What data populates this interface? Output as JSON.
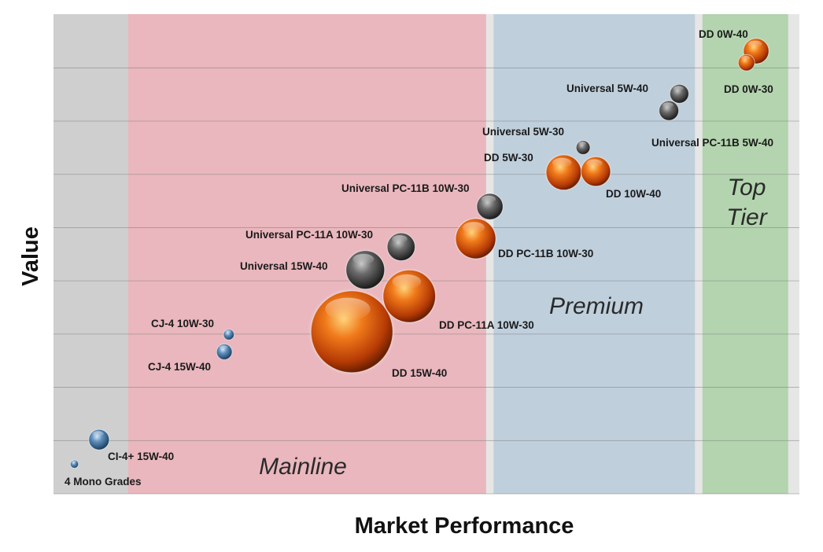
{
  "chart_data": {
    "type": "bubble",
    "xlabel": "Market Performance",
    "ylabel": "Value",
    "grid": true,
    "xlim": [
      0,
      100
    ],
    "ylim": [
      0,
      100
    ],
    "tiers": [
      {
        "name": "",
        "x0": 0,
        "x1": 10,
        "color": "#cfcfcf"
      },
      {
        "name": "Mainline",
        "x0": 10,
        "x1": 58,
        "color": "#e9b7bd"
      },
      {
        "name": "Premium",
        "x0": 59,
        "x1": 86,
        "color": "#bfcfdc"
      },
      {
        "name": "Top Tier",
        "x0": 87,
        "x1": 98.5,
        "color": "#b3d4ae"
      }
    ],
    "points": [
      {
        "label": "4 Mono Grades",
        "x": 2.8,
        "y": 6.2,
        "size": 1,
        "color": "blue"
      },
      {
        "label": "CI-4+ 15W-40",
        "x": 6.1,
        "y": 11.3,
        "size": 2.5,
        "color": "blue"
      },
      {
        "label": "CJ-4 10W-30",
        "x": 23.5,
        "y": 33.2,
        "size": 1.3,
        "color": "blue"
      },
      {
        "label": "CJ-4 15W-40",
        "x": 22.9,
        "y": 29.6,
        "size": 1.9,
        "color": "blue"
      },
      {
        "label": "DD 15W-40",
        "x": 40.0,
        "y": 33.8,
        "size": 10,
        "color": "orange"
      },
      {
        "label": "Universal 15W-40",
        "x": 41.8,
        "y": 46.7,
        "size": 4.7,
        "color": "gray"
      },
      {
        "label": "Universal PC-11A 10W-30",
        "x": 46.6,
        "y": 51.5,
        "size": 3.4,
        "color": "gray"
      },
      {
        "label": "DD PC-11A 10W-30",
        "x": 47.7,
        "y": 41.2,
        "size": 6.4,
        "color": "orange"
      },
      {
        "label": "Universal PC-11B 10W-30",
        "x": 58.5,
        "y": 59.9,
        "size": 3.2,
        "color": "gray"
      },
      {
        "label": "DD PC-11B 10W-30",
        "x": 56.6,
        "y": 53.2,
        "size": 4.9,
        "color": "orange"
      },
      {
        "label": "Universal 5W-30",
        "x": 71.0,
        "y": 72.2,
        "size": 1.7,
        "color": "gray"
      },
      {
        "label": "DD 5W-30",
        "x": 68.4,
        "y": 67.0,
        "size": 4.3,
        "color": "orange"
      },
      {
        "label": "DD 10W-40",
        "x": 72.7,
        "y": 67.2,
        "size": 3.6,
        "color": "orange"
      },
      {
        "label": "Universal 5W-40",
        "x": 83.9,
        "y": 83.4,
        "size": 2.3,
        "color": "gray"
      },
      {
        "label": "Universal PC-11B 5W-40",
        "x": 82.5,
        "y": 79.9,
        "size": 2.4,
        "color": "gray"
      },
      {
        "label": "DD 0W-40",
        "x": 94.2,
        "y": 92.3,
        "size": 3.1,
        "color": "orange"
      },
      {
        "label": "DD 0W-30",
        "x": 92.9,
        "y": 89.9,
        "size": 2.0,
        "color": "orange"
      }
    ]
  }
}
